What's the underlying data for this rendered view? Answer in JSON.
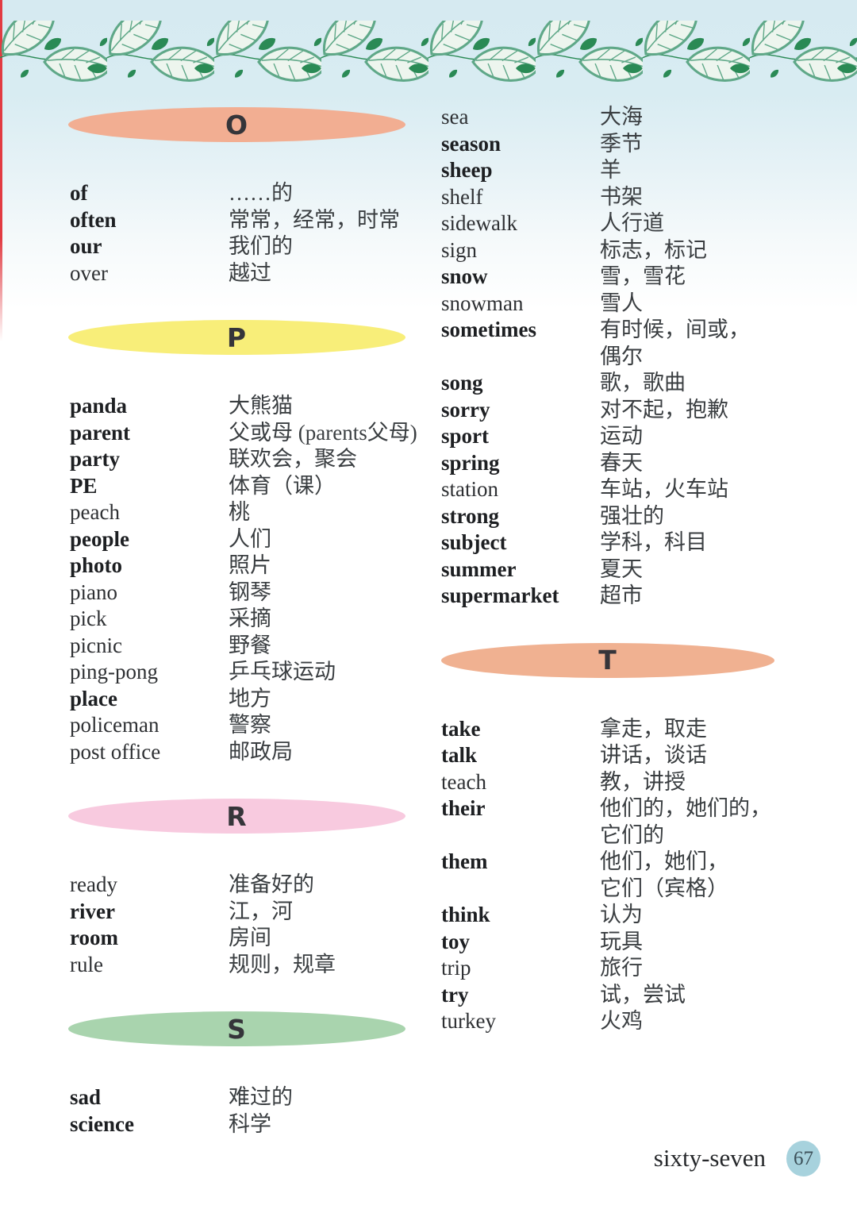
{
  "footer": {
    "words": "sixty-seven",
    "page_number": "67"
  },
  "colors": {
    "oval_o": "#f2ae92",
    "oval_p": "#f8ee79",
    "oval_r": "#f8cadf",
    "oval_s": "#a9d4ae",
    "oval_t": "#f0b191",
    "page_circle": "#a7d2dd",
    "leaf_outline": "#5fa888",
    "leaf_fill": "#edf5ee",
    "leaf_solid": "#2a8a55",
    "band_blue": "#d7eaf0"
  },
  "decorations": {
    "top_border": "leaf-vine-border"
  },
  "columns": {
    "left": [
      {
        "type": "header",
        "letter": "O",
        "color_key": "oval_o"
      },
      {
        "type": "entry",
        "word": "of",
        "bold": true,
        "trans": "……的"
      },
      {
        "type": "entry",
        "word": "often",
        "bold": true,
        "trans": "常常，经常，时常"
      },
      {
        "type": "entry",
        "word": "our",
        "bold": true,
        "trans": "我们的"
      },
      {
        "type": "entry",
        "word": "over",
        "bold": false,
        "trans": "越过"
      },
      {
        "type": "header",
        "letter": "P",
        "color_key": "oval_p"
      },
      {
        "type": "entry",
        "word": "panda",
        "bold": true,
        "trans": "大熊猫"
      },
      {
        "type": "entry",
        "word": "parent",
        "bold": true,
        "trans": "父或母 (parents父母)"
      },
      {
        "type": "entry",
        "word": "party",
        "bold": true,
        "trans": "联欢会，聚会"
      },
      {
        "type": "entry",
        "word": "PE",
        "bold": true,
        "trans": "体育（课）"
      },
      {
        "type": "entry",
        "word": "peach",
        "bold": false,
        "trans": "桃"
      },
      {
        "type": "entry",
        "word": "people",
        "bold": true,
        "trans": "人们"
      },
      {
        "type": "entry",
        "word": "photo",
        "bold": true,
        "trans": "照片"
      },
      {
        "type": "entry",
        "word": "piano",
        "bold": false,
        "trans": "钢琴"
      },
      {
        "type": "entry",
        "word": "pick",
        "bold": false,
        "trans": "采摘"
      },
      {
        "type": "entry",
        "word": "picnic",
        "bold": false,
        "trans": "野餐"
      },
      {
        "type": "entry",
        "word": "ping-pong",
        "bold": false,
        "trans": "乒乓球运动"
      },
      {
        "type": "entry",
        "word": "place",
        "bold": true,
        "trans": "地方"
      },
      {
        "type": "entry",
        "word": "policeman",
        "bold": false,
        "trans": "警察"
      },
      {
        "type": "entry",
        "word": "post office",
        "bold": false,
        "trans": "邮政局"
      },
      {
        "type": "header",
        "letter": "R",
        "color_key": "oval_r"
      },
      {
        "type": "entry",
        "word": "ready",
        "bold": false,
        "trans": "准备好的"
      },
      {
        "type": "entry",
        "word": "river",
        "bold": true,
        "trans": "江，河"
      },
      {
        "type": "entry",
        "word": "room",
        "bold": true,
        "trans": "房间"
      },
      {
        "type": "entry",
        "word": "rule",
        "bold": false,
        "trans": "规则，规章"
      },
      {
        "type": "header",
        "letter": "S",
        "color_key": "oval_s"
      },
      {
        "type": "entry",
        "word": "sad",
        "bold": true,
        "trans": "难过的"
      },
      {
        "type": "entry",
        "word": "science",
        "bold": true,
        "trans": "科学"
      }
    ],
    "right": [
      {
        "type": "entry",
        "word": "sea",
        "bold": false,
        "trans": "大海"
      },
      {
        "type": "entry",
        "word": "season",
        "bold": true,
        "trans": "季节"
      },
      {
        "type": "entry",
        "word": "sheep",
        "bold": true,
        "trans": "羊"
      },
      {
        "type": "entry",
        "word": "shelf",
        "bold": false,
        "trans": "书架"
      },
      {
        "type": "entry",
        "word": "sidewalk",
        "bold": false,
        "trans": "人行道"
      },
      {
        "type": "entry",
        "word": "sign",
        "bold": false,
        "trans": "标志，标记"
      },
      {
        "type": "entry",
        "word": "snow",
        "bold": true,
        "trans": "雪，雪花"
      },
      {
        "type": "entry",
        "word": "snowman",
        "bold": false,
        "trans": "雪人"
      },
      {
        "type": "entry",
        "word": "sometimes",
        "bold": true,
        "trans": "有时候，间或，\n偶尔"
      },
      {
        "type": "entry",
        "word": "song",
        "bold": true,
        "trans": "歌，歌曲"
      },
      {
        "type": "entry",
        "word": "sorry",
        "bold": true,
        "trans": "对不起，抱歉"
      },
      {
        "type": "entry",
        "word": "sport",
        "bold": true,
        "trans": "运动"
      },
      {
        "type": "entry",
        "word": "spring",
        "bold": true,
        "trans": "春天"
      },
      {
        "type": "entry",
        "word": "station",
        "bold": false,
        "trans": "车站，火车站"
      },
      {
        "type": "entry",
        "word": "strong",
        "bold": true,
        "trans": "强壮的"
      },
      {
        "type": "entry",
        "word": "subject",
        "bold": true,
        "trans": "学科，科目"
      },
      {
        "type": "entry",
        "word": "summer",
        "bold": true,
        "trans": "夏天"
      },
      {
        "type": "entry",
        "word": "supermarket",
        "bold": true,
        "trans": "超市"
      },
      {
        "type": "header",
        "letter": "T",
        "color_key": "oval_t"
      },
      {
        "type": "entry",
        "word": "take",
        "bold": true,
        "trans": "拿走，取走"
      },
      {
        "type": "entry",
        "word": "talk",
        "bold": true,
        "trans": "讲话，谈话"
      },
      {
        "type": "entry",
        "word": "teach",
        "bold": false,
        "trans": "教，讲授"
      },
      {
        "type": "entry",
        "word": "their",
        "bold": true,
        "trans": "他们的，她们的，\n它们的"
      },
      {
        "type": "entry",
        "word": "them",
        "bold": true,
        "trans": "他们，她们，\n它们（宾格）"
      },
      {
        "type": "entry",
        "word": "think",
        "bold": true,
        "trans": "认为"
      },
      {
        "type": "entry",
        "word": "toy",
        "bold": true,
        "trans": "玩具"
      },
      {
        "type": "entry",
        "word": "trip",
        "bold": false,
        "trans": "旅行"
      },
      {
        "type": "entry",
        "word": "try",
        "bold": true,
        "trans": "试，尝试"
      },
      {
        "type": "entry",
        "word": "turkey",
        "bold": false,
        "trans": "火鸡"
      }
    ]
  }
}
